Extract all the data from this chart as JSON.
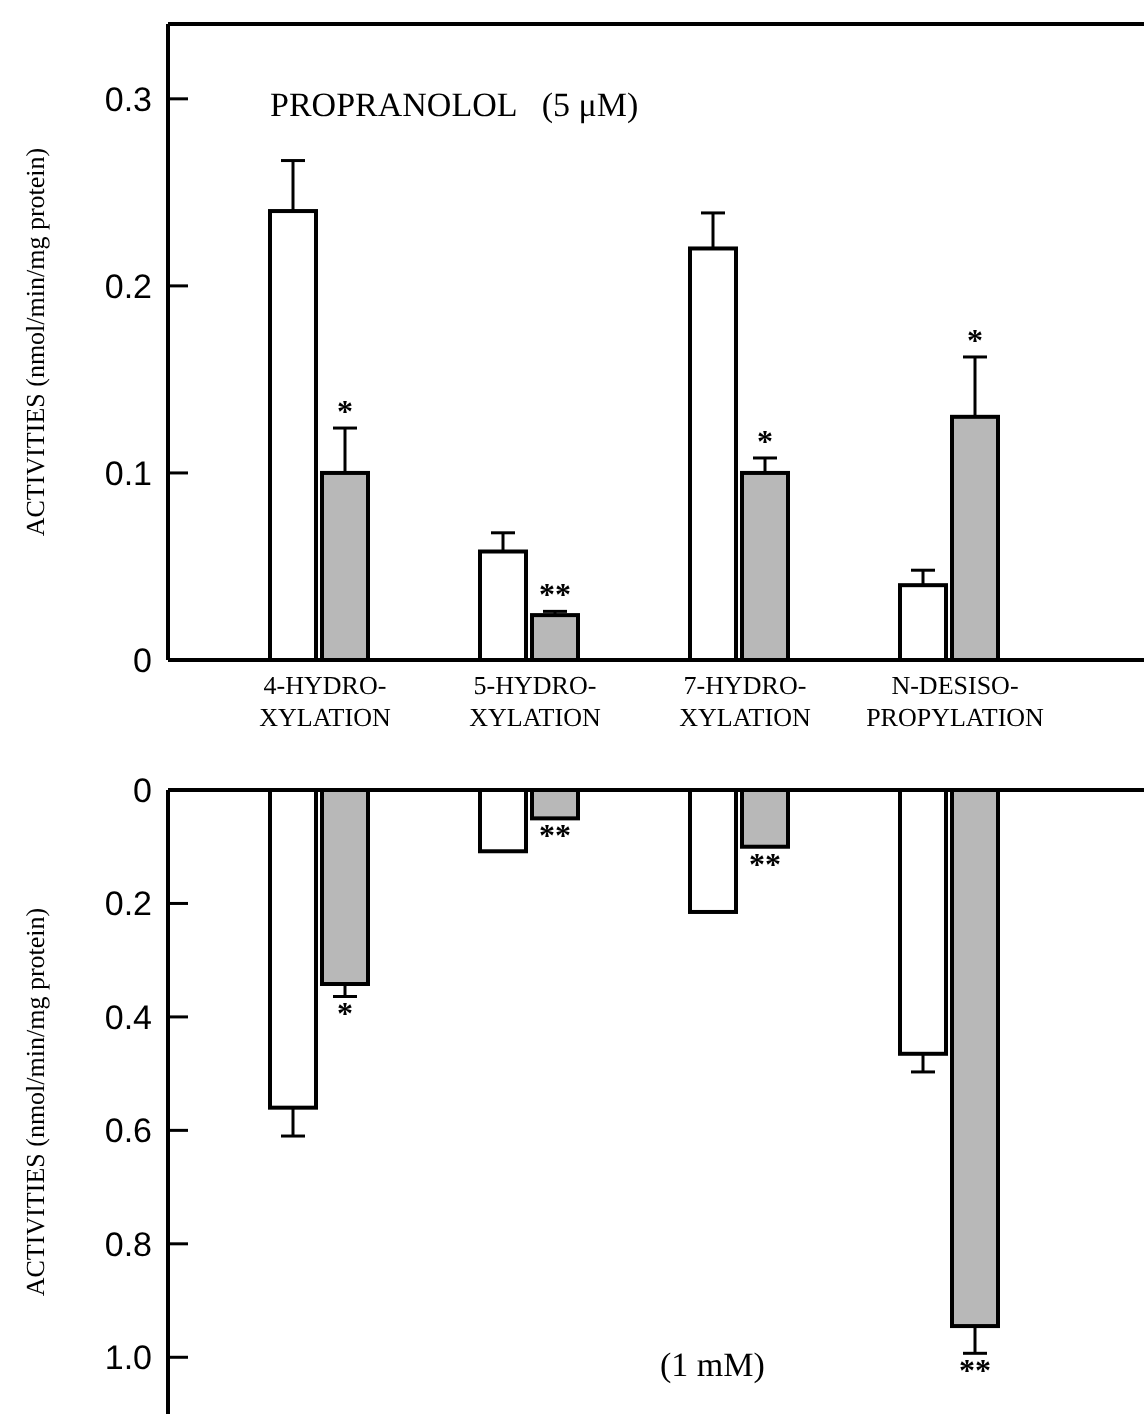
{
  "chart_data": [
    {
      "type": "bar",
      "title": "PROPRANOLOL   (5 μM)",
      "ylabel": "ACTIVITIES (nmol/min/mg protein)",
      "categories": [
        "4-HYDRO-\nXYLATION",
        "5-HYDRO-\nXYLATION",
        "7-HYDRO-\nXYLATION",
        "N-DESISO-\nPROPYLATION"
      ],
      "ylim": [
        0,
        0.34
      ],
      "yticks": [
        0,
        0.1,
        0.2,
        0.3
      ],
      "series": [
        {
          "color": "#ffffff",
          "values": [
            0.24,
            0.058,
            0.22,
            0.04
          ],
          "errors": [
            [
              0.24,
              0.267
            ],
            [
              0.058,
              0.068
            ],
            [
              0.22,
              0.239
            ],
            [
              0.04,
              0.048
            ]
          ]
        },
        {
          "color": "#b8b8b8",
          "values": [
            0.1,
            0.024,
            0.1,
            0.13
          ],
          "errors": [
            [
              0.1,
              0.124
            ],
            [
              0.024,
              0.026
            ],
            [
              0.1,
              0.108
            ],
            [
              0.13,
              0.162
            ]
          ]
        }
      ],
      "annotations": [
        {
          "text": "*",
          "x": "4-HYDRO-\nXYLATION",
          "y": 0.124
        },
        {
          "text": "**",
          "x": "5-HYDRO-\nXYLATION",
          "y": 0.026
        },
        {
          "text": "*",
          "x": "7-HYDRO-\nXYLATION",
          "y": 0.108
        },
        {
          "text": "*",
          "x": "N-DESISO-\nPROPYLATION",
          "y": 0.162
        }
      ]
    },
    {
      "type": "bar",
      "title": "(1 mM)",
      "ylabel": "ACTIVITIES (nmol/min/mg protein)",
      "categories": [
        "4-HYDRO-\nXYLATION",
        "5-HYDRO-\nXYLATION",
        "7-HYDRO-\nXYLATION",
        "N-DESISO-\nPROPYLATION"
      ],
      "ylim": [
        1.1,
        0
      ],
      "yticks": [
        0,
        0.2,
        0.4,
        0.6,
        0.8,
        {
          "value": 1,
          "label": "1.0"
        }
      ],
      "tick_labels": "y",
      "series": [
        {
          "color": "#ffffff",
          "values": [
            0.56,
            0.108,
            0.215,
            0.465
          ],
          "errors": [
            [
              0.56,
              0.61
            ],
            null,
            null,
            [
              0.465,
              0.497
            ]
          ]
        },
        {
          "color": "#b8b8b8",
          "values": [
            0.342,
            0.05,
            0.1,
            0.945
          ],
          "errors": [
            [
              0.342,
              0.364
            ],
            null,
            null,
            [
              0.945,
              0.993
            ]
          ]
        }
      ],
      "annotations": [
        {
          "text": "*",
          "x": "4-HYDRO-\nXYLATION",
          "y": 0.364
        },
        {
          "text": "**",
          "x": "5-HYDRO-\nXYLATION",
          "y": 0.05
        },
        {
          "text": "**",
          "x": "7-HYDRO-\nXYLATION",
          "y": 0.1
        },
        {
          "text": "**",
          "x": "N-DESISO-\nPROPYLATION",
          "y": 0.993
        }
      ]
    }
  ]
}
